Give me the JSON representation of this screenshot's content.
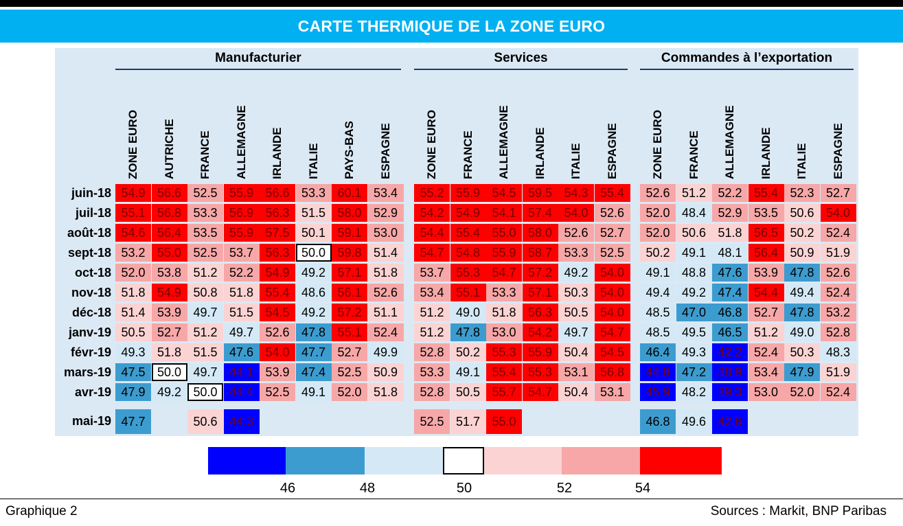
{
  "title": "CARTE THERMIQUE DE LA ZONE EURO",
  "footer": {
    "left": "Graphique 2",
    "right": "Sources : Markit, BNP Paribas"
  },
  "chart_data": {
    "type": "heatmap",
    "groups": [
      {
        "name": "Manufacturier",
        "columns": [
          "ZONE EURO",
          "AUTRICHE",
          "FRANCE",
          "ALLEMAGNE",
          "IRLANDE",
          "ITALIE",
          "PAYS-BAS",
          "ESPAGNE"
        ]
      },
      {
        "name": "Services",
        "columns": [
          "ZONE EURO",
          "FRANCE",
          "ALLEMAGNE",
          "IRLANDE",
          "ITALIE",
          "ESPAGNE"
        ]
      },
      {
        "name": "Commandes à l’exportation",
        "columns": [
          "ZONE EURO",
          "FRANCE",
          "ALLEMAGNE",
          "IRLANDE",
          "ITALIE",
          "ESPAGNE"
        ]
      }
    ],
    "rows": [
      "juin-18",
      "juil-18",
      "août-18",
      "sept-18",
      "oct-18",
      "nov-18",
      "déc-18",
      "janv-19",
      "févr-19",
      "mars-19",
      "avr-19",
      "mai-19"
    ],
    "values": [
      [
        "54.9",
        "56.6",
        "52.5",
        "55.9",
        "56.6",
        "53.3",
        "60.1",
        "53.4",
        "55.2",
        "55.9",
        "54.5",
        "59.5",
        "54.3",
        "55.4",
        "52.6",
        "51.2",
        "52.2",
        "55.4",
        "52.3",
        "52.7"
      ],
      [
        "55.1",
        "56.8",
        "53.3",
        "56.9",
        "56.3",
        "51.5",
        "58.0",
        "52.9",
        "54.2",
        "54.9",
        "54.1",
        "57.4",
        "54.0",
        "52.6",
        "52.0",
        "48.4",
        "52.9",
        "53.5",
        "50.6",
        "54.0"
      ],
      [
        "54.6",
        "56.4",
        "53.5",
        "55.9",
        "57.5",
        "50.1",
        "59.1",
        "53.0",
        "54.4",
        "55.4",
        "55.0",
        "58.0",
        "52.6",
        "52.7",
        "52.0",
        "50.6",
        "51.8",
        "56.5",
        "50.2",
        "52.4"
      ],
      [
        "53.2",
        "55.0",
        "52.5",
        "53.7",
        "56.3",
        "50.0",
        "59.8",
        "51.4",
        "54.7",
        "54.8",
        "55.9",
        "58.7",
        "53.3",
        "52.5",
        "50.2",
        "49.1",
        "48.1",
        "56.4",
        "50.9",
        "51.9"
      ],
      [
        "52.0",
        "53.8",
        "51.2",
        "52.2",
        "54.9",
        "49.2",
        "57.1",
        "51.8",
        "53.7",
        "55.3",
        "54.7",
        "57.2",
        "49.2",
        "54.0",
        "49.1",
        "48.8",
        "47.6",
        "53.9",
        "47.8",
        "52.6"
      ],
      [
        "51.8",
        "54.9",
        "50.8",
        "51.8",
        "55.4",
        "48.6",
        "56.1",
        "52.6",
        "53.4",
        "55.1",
        "53.3",
        "57.1",
        "50.3",
        "54.0",
        "49.4",
        "49.2",
        "47.4",
        "54.4",
        "49.4",
        "52.4"
      ],
      [
        "51.4",
        "53.9",
        "49.7",
        "51.5",
        "54.5",
        "49.2",
        "57.2",
        "51.1",
        "51.2",
        "49.0",
        "51.8",
        "56.3",
        "50.5",
        "54.0",
        "48.5",
        "47.0",
        "46.8",
        "52.7",
        "47.8",
        "53.2"
      ],
      [
        "50.5",
        "52.7",
        "51.2",
        "49.7",
        "52.6",
        "47.8",
        "55.1",
        "52.4",
        "51.2",
        "47.8",
        "53.0",
        "54.2",
        "49.7",
        "54.7",
        "48.5",
        "49.5",
        "46.5",
        "51.2",
        "49.0",
        "52.8"
      ],
      [
        "49.3",
        "51.8",
        "51.5",
        "47.6",
        "54.0",
        "47.7",
        "52.7",
        "49.9",
        "52.8",
        "50.2",
        "55.3",
        "55.9",
        "50.4",
        "54.5",
        "46.4",
        "49.3",
        "42.2",
        "52.4",
        "50.3",
        "48.3"
      ],
      [
        "47.5",
        "50.0",
        "49.7",
        "44.1",
        "53.9",
        "47.4",
        "52.5",
        "50.9",
        "53.3",
        "49.1",
        "55.4",
        "55.3",
        "53.1",
        "56.8",
        "44.8",
        "47.2",
        "38.9",
        "53.4",
        "47.9",
        "51.9"
      ],
      [
        "47.9",
        "49.2",
        "50.0",
        "44.4",
        "52.5",
        "49.1",
        "52.0",
        "51.8",
        "52.8",
        "50.5",
        "55.7",
        "54.7",
        "50.4",
        "53.1",
        "45.9",
        "48.2",
        "39.3",
        "53.0",
        "52.0",
        "52.4"
      ],
      [
        "47.7",
        "",
        "50.6",
        "44.3",
        "",
        "",
        "",
        "",
        "52.5",
        "51.7",
        "55.0",
        "",
        "",
        "",
        "46.8",
        "49.6",
        "42.6",
        "",
        "",
        ""
      ]
    ],
    "legend": {
      "ticks": [
        "46",
        "48",
        "50",
        "52",
        "54"
      ],
      "colors": [
        "#0000ff",
        "#3d9ccf",
        "#d4e9f5",
        "#ffffff",
        "#fbd3d3",
        "#f7a7a7",
        "#ff0000"
      ]
    }
  }
}
